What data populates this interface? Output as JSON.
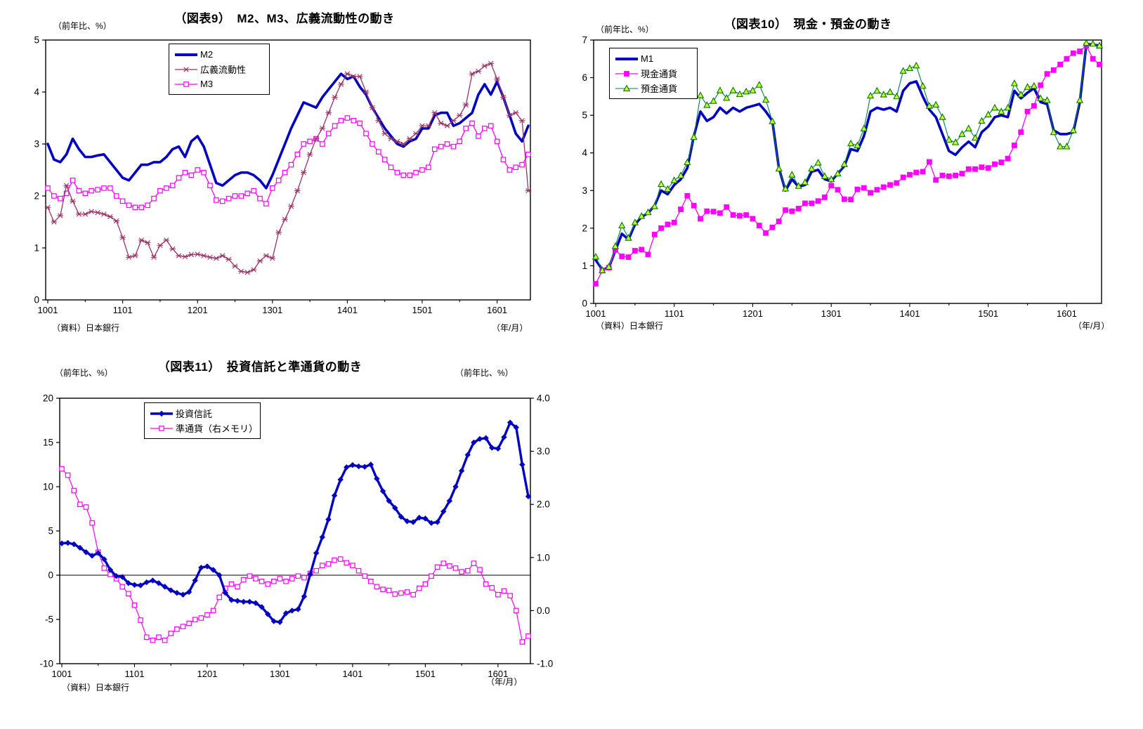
{
  "page": {
    "background": "#ffffff"
  },
  "chart_data": [
    {
      "id": "fig9",
      "type": "line",
      "title": "（図表9）　M2、M3、広義流動性の動き",
      "unit_left": "（前年比、%）",
      "source": "（資料）日本銀行",
      "x_axis_note": "（年/月）",
      "x_tick_labels": [
        "1001",
        "1101",
        "1201",
        "1301",
        "1401",
        "1501",
        "1601"
      ],
      "x_months": [
        "1001",
        "1002",
        "1003",
        "1004",
        "1005",
        "1006",
        "1007",
        "1008",
        "1009",
        "1010",
        "1011",
        "1012",
        "1101",
        "1102",
        "1103",
        "1104",
        "1105",
        "1106",
        "1107",
        "1108",
        "1109",
        "1110",
        "1111",
        "1112",
        "1201",
        "1202",
        "1203",
        "1204",
        "1205",
        "1206",
        "1207",
        "1208",
        "1209",
        "1210",
        "1211",
        "1212",
        "1301",
        "1302",
        "1303",
        "1304",
        "1305",
        "1306",
        "1307",
        "1308",
        "1309",
        "1310",
        "1311",
        "1312",
        "1401",
        "1402",
        "1403",
        "1404",
        "1405",
        "1406",
        "1407",
        "1408",
        "1409",
        "1410",
        "1411",
        "1412",
        "1501",
        "1502",
        "1503",
        "1504",
        "1505",
        "1506",
        "1507",
        "1508",
        "1509",
        "1510",
        "1511",
        "1512",
        "1601",
        "1602",
        "1603",
        "1604",
        "1605",
        "1606"
      ],
      "ylim_left": [
        0,
        5
      ],
      "yticks_left": [
        0,
        1,
        2,
        3,
        4,
        5
      ],
      "grid": false,
      "legend_position": "top-center-inside",
      "series": [
        {
          "name": "M2",
          "color": "#0000C0",
          "width": 3.6,
          "marker": "none",
          "z": 1,
          "values": [
            3.0,
            2.7,
            2.65,
            2.8,
            3.1,
            2.9,
            2.75,
            2.75,
            2.78,
            2.8,
            2.65,
            2.5,
            2.35,
            2.3,
            2.45,
            2.6,
            2.6,
            2.65,
            2.65,
            2.75,
            2.9,
            2.95,
            2.75,
            3.05,
            3.15,
            2.95,
            2.6,
            2.25,
            2.2,
            2.3,
            2.4,
            2.45,
            2.45,
            2.4,
            2.3,
            2.15,
            2.4,
            2.7,
            3.0,
            3.3,
            3.55,
            3.8,
            3.75,
            3.7,
            3.9,
            4.05,
            4.2,
            4.35,
            4.25,
            4.3,
            4.1,
            3.95,
            3.7,
            3.5,
            3.3,
            3.15,
            3.0,
            2.95,
            3.05,
            3.1,
            3.3,
            3.3,
            3.55,
            3.6,
            3.6,
            3.35,
            3.4,
            3.5,
            3.6,
            3.95,
            4.15,
            3.95,
            4.2,
            3.9,
            3.55,
            3.2,
            3.05,
            3.35
          ]
        },
        {
          "name": "広義流動性",
          "color": "#993366",
          "width": 1.3,
          "marker": "asterisk",
          "z": 2,
          "values": [
            1.78,
            1.5,
            1.62,
            2.2,
            1.9,
            1.65,
            1.65,
            1.7,
            1.68,
            1.65,
            1.6,
            1.52,
            1.2,
            0.82,
            0.85,
            1.15,
            1.1,
            0.82,
            1.05,
            1.15,
            0.98,
            0.85,
            0.83,
            0.87,
            0.88,
            0.85,
            0.82,
            0.8,
            0.85,
            0.78,
            0.65,
            0.55,
            0.53,
            0.58,
            0.75,
            0.85,
            0.8,
            1.3,
            1.55,
            1.8,
            2.1,
            2.45,
            2.8,
            3.1,
            3.3,
            3.6,
            3.9,
            4.15,
            4.35,
            4.3,
            4.3,
            4.0,
            3.7,
            3.45,
            3.2,
            3.1,
            3.05,
            3.0,
            3.1,
            3.2,
            3.35,
            3.35,
            3.6,
            3.4,
            3.35,
            3.45,
            3.55,
            3.75,
            4.35,
            4.4,
            4.5,
            4.55,
            4.25,
            3.9,
            3.55,
            3.6,
            3.45,
            2.1
          ]
        },
        {
          "name": "M3",
          "color": "#FF00FF",
          "width": 1.3,
          "marker": "square-open",
          "z": 0,
          "values": [
            2.15,
            2.0,
            1.95,
            2.05,
            2.3,
            2.1,
            2.05,
            2.1,
            2.12,
            2.15,
            2.15,
            2.0,
            1.9,
            1.82,
            1.78,
            1.78,
            1.82,
            1.95,
            2.1,
            2.15,
            2.2,
            2.35,
            2.45,
            2.4,
            2.5,
            2.45,
            2.2,
            1.92,
            1.9,
            1.95,
            2.0,
            2.0,
            2.05,
            2.1,
            1.95,
            1.85,
            2.15,
            2.3,
            2.45,
            2.6,
            2.8,
            3.0,
            3.05,
            3.1,
            3.0,
            3.2,
            3.35,
            3.45,
            3.5,
            3.45,
            3.4,
            3.2,
            3.0,
            2.85,
            2.7,
            2.55,
            2.45,
            2.4,
            2.4,
            2.45,
            2.5,
            2.55,
            2.9,
            2.95,
            3.0,
            2.95,
            3.05,
            3.3,
            3.4,
            3.15,
            3.3,
            3.35,
            3.05,
            2.7,
            2.5,
            2.55,
            2.6,
            2.8
          ]
        }
      ]
    },
    {
      "id": "fig10",
      "type": "line",
      "title": "（図表10）　現金・預金の動き",
      "unit_left": "（前年比、%）",
      "source": "（資料）日本銀行",
      "x_axis_note": "（年/月）",
      "x_tick_labels": [
        "1001",
        "1101",
        "1201",
        "1301",
        "1401",
        "1501",
        "1601"
      ],
      "x_months": [
        "1001",
        "1002",
        "1003",
        "1004",
        "1005",
        "1006",
        "1007",
        "1008",
        "1009",
        "1010",
        "1011",
        "1012",
        "1101",
        "1102",
        "1103",
        "1104",
        "1105",
        "1106",
        "1107",
        "1108",
        "1109",
        "1110",
        "1111",
        "1112",
        "1201",
        "1202",
        "1203",
        "1204",
        "1205",
        "1206",
        "1207",
        "1208",
        "1209",
        "1210",
        "1211",
        "1212",
        "1301",
        "1302",
        "1303",
        "1304",
        "1305",
        "1306",
        "1307",
        "1308",
        "1309",
        "1310",
        "1311",
        "1312",
        "1401",
        "1402",
        "1403",
        "1404",
        "1405",
        "1406",
        "1407",
        "1408",
        "1409",
        "1410",
        "1411",
        "1412",
        "1501",
        "1502",
        "1503",
        "1504",
        "1505",
        "1506",
        "1507",
        "1508",
        "1509",
        "1510",
        "1511",
        "1512",
        "1601",
        "1602",
        "1603",
        "1604",
        "1605",
        "1606"
      ],
      "ylim_left": [
        0,
        7
      ],
      "yticks_left": [
        0,
        1,
        2,
        3,
        4,
        5,
        6,
        7
      ],
      "grid": false,
      "legend_position": "top-left-inside",
      "series": [
        {
          "name": "M1",
          "color": "#0000C0",
          "width": 3.6,
          "marker": "none",
          "z": 0,
          "values": [
            1.15,
            0.9,
            0.95,
            1.4,
            1.85,
            1.7,
            2.1,
            2.3,
            2.4,
            2.6,
            3.0,
            2.9,
            3.15,
            3.3,
            3.6,
            4.45,
            5.1,
            4.85,
            4.95,
            5.2,
            5.05,
            5.2,
            5.1,
            5.2,
            5.25,
            5.3,
            5.1,
            4.85,
            3.6,
            3.0,
            3.3,
            3.1,
            3.15,
            3.5,
            3.55,
            3.3,
            3.25,
            3.45,
            3.65,
            4.1,
            4.05,
            4.45,
            5.1,
            5.2,
            5.15,
            5.2,
            5.1,
            5.65,
            5.85,
            5.9,
            5.5,
            5.15,
            4.95,
            4.5,
            4.05,
            3.95,
            4.15,
            4.3,
            4.15,
            4.55,
            4.7,
            4.95,
            5.0,
            4.95,
            5.65,
            5.45,
            5.6,
            5.72,
            5.35,
            5.3,
            4.6,
            4.5,
            4.5,
            4.55,
            5.35,
            6.9,
            6.88,
            6.85
          ]
        },
        {
          "name": "現金通貨",
          "color": "#FF00FF",
          "width": 1.3,
          "marker": "square-filled",
          "z": 1,
          "values": [
            0.52,
            0.87,
            0.95,
            1.42,
            1.25,
            1.23,
            1.4,
            1.43,
            1.3,
            1.83,
            2.0,
            2.1,
            2.15,
            2.5,
            2.86,
            2.6,
            2.25,
            2.45,
            2.44,
            2.4,
            2.56,
            2.35,
            2.33,
            2.35,
            2.25,
            2.07,
            1.87,
            2.02,
            2.18,
            2.48,
            2.45,
            2.52,
            2.66,
            2.66,
            2.72,
            2.82,
            3.13,
            3.02,
            2.77,
            2.76,
            3.03,
            3.07,
            2.94,
            3.02,
            3.09,
            3.15,
            3.2,
            3.35,
            3.42,
            3.48,
            3.5,
            3.76,
            3.28,
            3.4,
            3.38,
            3.4,
            3.45,
            3.57,
            3.57,
            3.62,
            3.6,
            3.7,
            3.75,
            3.85,
            4.2,
            4.55,
            5.1,
            5.25,
            5.8,
            6.1,
            6.2,
            6.35,
            6.5,
            6.65,
            6.7,
            6.85,
            6.5,
            6.35
          ]
        },
        {
          "name": "預金通貨",
          "color": "#008052",
          "width": 1.1,
          "marker": "triangle",
          "marker_fill": "#CCFF33",
          "marker_stroke": "#007700",
          "z": 2,
          "values": [
            1.24,
            0.88,
            0.97,
            1.52,
            2.07,
            1.74,
            2.15,
            2.32,
            2.42,
            2.58,
            3.17,
            3.04,
            3.27,
            3.4,
            3.75,
            4.42,
            5.53,
            5.27,
            5.38,
            5.66,
            5.46,
            5.66,
            5.56,
            5.63,
            5.66,
            5.81,
            5.41,
            4.84,
            3.58,
            3.05,
            3.42,
            3.12,
            3.22,
            3.58,
            3.74,
            3.38,
            3.3,
            3.45,
            3.7,
            4.25,
            4.2,
            4.65,
            5.52,
            5.65,
            5.55,
            5.62,
            5.5,
            6.18,
            6.25,
            6.32,
            5.78,
            5.25,
            5.28,
            4.95,
            4.35,
            4.28,
            4.5,
            4.65,
            4.4,
            4.85,
            5.02,
            5.2,
            5.1,
            5.2,
            5.85,
            5.55,
            5.75,
            5.78,
            5.45,
            5.4,
            4.55,
            4.17,
            4.17,
            4.6,
            5.4,
            6.92,
            6.9,
            6.85
          ]
        }
      ]
    },
    {
      "id": "fig11",
      "type": "line",
      "title": "（図表11）　投資信託と準通貨の動き",
      "unit_left": "（前年比、%）",
      "unit_right": "（前年比、%）",
      "source": "（資料）日本銀行",
      "x_axis_note": "（年/月）",
      "x_tick_labels": [
        "1001",
        "1101",
        "1201",
        "1301",
        "1401",
        "1501",
        "1601"
      ],
      "x_months": [
        "1001",
        "1002",
        "1003",
        "1004",
        "1005",
        "1006",
        "1007",
        "1008",
        "1009",
        "1010",
        "1011",
        "1012",
        "1101",
        "1102",
        "1103",
        "1104",
        "1105",
        "1106",
        "1107",
        "1108",
        "1109",
        "1110",
        "1111",
        "1112",
        "1201",
        "1202",
        "1203",
        "1204",
        "1205",
        "1206",
        "1207",
        "1208",
        "1209",
        "1210",
        "1211",
        "1212",
        "1301",
        "1302",
        "1303",
        "1304",
        "1305",
        "1306",
        "1307",
        "1308",
        "1309",
        "1310",
        "1311",
        "1312",
        "1401",
        "1402",
        "1403",
        "1404",
        "1405",
        "1406",
        "1407",
        "1408",
        "1409",
        "1410",
        "1411",
        "1412",
        "1501",
        "1502",
        "1503",
        "1504",
        "1505",
        "1506",
        "1507",
        "1508",
        "1509",
        "1510",
        "1511",
        "1512",
        "1601",
        "1602",
        "1603",
        "1604",
        "1605",
        "1606"
      ],
      "ylim_left": [
        -10,
        20
      ],
      "yticks_left": [
        -10,
        -5,
        0,
        5,
        10,
        15,
        20
      ],
      "ylim_right": [
        -1.0,
        4.0
      ],
      "yticks_right": [
        "-1.0",
        "0.0",
        "1.0",
        "2.0",
        "3.0",
        "4.0"
      ],
      "zero_line_left": true,
      "grid": false,
      "legend_position": "top-center-inside",
      "series": [
        {
          "name": "投資信託",
          "color": "#0000C0",
          "width": 3.4,
          "marker": "diamond",
          "axis": "left",
          "z": 1,
          "values": [
            3.6,
            3.65,
            3.5,
            3.1,
            2.6,
            2.2,
            2.5,
            1.8,
            0.6,
            -0.1,
            -0.2,
            -0.9,
            -1.1,
            -1.15,
            -0.8,
            -0.6,
            -0.9,
            -1.3,
            -1.7,
            -2.0,
            -2.2,
            -1.9,
            -0.6,
            0.85,
            1.0,
            0.6,
            0.0,
            -2.0,
            -2.8,
            -2.9,
            -3.0,
            -3.0,
            -3.15,
            -3.6,
            -4.4,
            -5.2,
            -5.3,
            -4.3,
            -4.0,
            -3.85,
            -2.4,
            0.1,
            2.5,
            4.3,
            6.3,
            9.0,
            10.8,
            12.2,
            12.45,
            12.3,
            12.25,
            12.5,
            10.9,
            9.5,
            8.4,
            7.6,
            6.6,
            6.1,
            6.0,
            6.5,
            6.4,
            5.9,
            6.0,
            7.2,
            8.4,
            10.0,
            11.8,
            13.6,
            15.0,
            15.4,
            15.5,
            14.4,
            14.3,
            15.6,
            17.25,
            16.7,
            12.5,
            8.9
          ]
        },
        {
          "name": "準通貨（右メモリ）",
          "color": "#FF00FF",
          "width": 1.2,
          "marker": "square-open",
          "axis": "right",
          "z": 0,
          "values": [
            2.67,
            2.55,
            2.26,
            2.0,
            1.95,
            1.65,
            1.1,
            0.8,
            0.68,
            0.6,
            0.45,
            0.32,
            0.1,
            -0.18,
            -0.5,
            -0.56,
            -0.5,
            -0.56,
            -0.43,
            -0.35,
            -0.3,
            -0.24,
            -0.17,
            -0.14,
            -0.08,
            0.0,
            0.25,
            0.42,
            0.5,
            0.45,
            0.58,
            0.65,
            0.6,
            0.55,
            0.5,
            0.55,
            0.6,
            0.55,
            0.6,
            0.65,
            0.62,
            0.7,
            0.75,
            0.85,
            0.88,
            0.95,
            0.97,
            0.9,
            0.85,
            0.75,
            0.65,
            0.55,
            0.45,
            0.4,
            0.38,
            0.31,
            0.33,
            0.35,
            0.3,
            0.42,
            0.5,
            0.65,
            0.82,
            0.89,
            0.84,
            0.8,
            0.73,
            0.75,
            0.89,
            0.77,
            0.5,
            0.43,
            0.3,
            0.37,
            0.28,
            0.0,
            -0.59,
            -0.48
          ]
        }
      ]
    }
  ]
}
